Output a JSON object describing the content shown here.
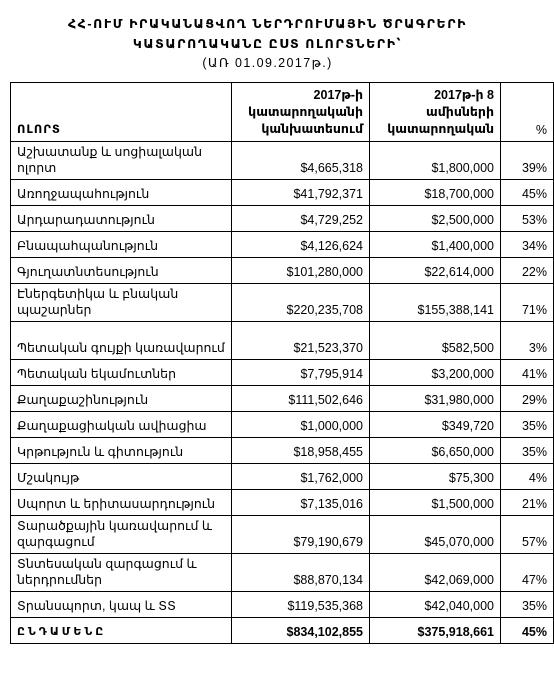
{
  "header": {
    "title_line1": "ՀՀ-ՈՒՄ ԻՐԱԿԱՆԱՑՎՈՂ ՆԵՐԴՐՈՒՄԱՅԻՆ ԾՐԱԳՐԵՐԻ",
    "title_line2": "ԿԱՏԱՐՈՂԱԿԱՆԸ ԸՍՏ ՈԼՈՐՏՆԵՐԻ՝",
    "subtitle": "(ԱՌ 01.09.2017թ.)"
  },
  "table": {
    "columns": {
      "sector": "ՈԼՈՐՏ",
      "planned": "2017թ-ի կատարողականի կանխատեսում",
      "executed": "2017թ-ի 8 ամիսների կատարողական",
      "percent": "%"
    },
    "rows": [
      {
        "sector": "Աշխատանք և սոցիալական ոլորտ",
        "planned": "$4,665,318",
        "executed": "$1,800,000",
        "percent": "39%"
      },
      {
        "sector": "Առողջապահություն",
        "planned": "$41,792,371",
        "executed": "$18,700,000",
        "percent": "45%"
      },
      {
        "sector": "Արդարադատություն",
        "planned": "$4,729,252",
        "executed": "$2,500,000",
        "percent": "53%"
      },
      {
        "sector": "Բնապահպանություն",
        "planned": "$4,126,624",
        "executed": "$1,400,000",
        "percent": "34%"
      },
      {
        "sector": "Գյուղատնտեսություն",
        "planned": "$101,280,000",
        "executed": "$22,614,000",
        "percent": "22%"
      },
      {
        "sector": "Էներգետիկա և բնական պաշարներ",
        "planned": "$220,235,708",
        "executed": "$155,388,141",
        "percent": "71%"
      },
      {
        "sector": "Պետական գույքի կառավարում",
        "planned": "$21,523,370",
        "executed": "$582,500",
        "percent": "3%"
      },
      {
        "sector": "Պետական եկամուտներ",
        "planned": "$7,795,914",
        "executed": "$3,200,000",
        "percent": "41%"
      },
      {
        "sector": "Քաղաքաշինություն",
        "planned": "$111,502,646",
        "executed": "$31,980,000",
        "percent": "29%"
      },
      {
        "sector": "Քաղաքացիական ավիացիա",
        "planned": "$1,000,000",
        "executed": "$349,720",
        "percent": "35%"
      },
      {
        "sector": "Կրթություն և գիտություն",
        "planned": "$18,958,455",
        "executed": "$6,650,000",
        "percent": "35%"
      },
      {
        "sector": "Մշակույթ",
        "planned": "$1,762,000",
        "executed": "$75,300",
        "percent": "4%"
      },
      {
        "sector": "Սպորտ և երիտասարդություն",
        "planned": "$7,135,016",
        "executed": "$1,500,000",
        "percent": "21%"
      },
      {
        "sector": "Տարածքային կառավարում և զարգացում",
        "planned": "$79,190,679",
        "executed": "$45,070,000",
        "percent": "57%"
      },
      {
        "sector": "Տնտեսական զարգացում և ներդրումներ",
        "planned": "$88,870,134",
        "executed": "$42,069,000",
        "percent": "47%"
      },
      {
        "sector": "Տրանսպորտ, կապ և ՏՏ",
        "planned": "$119,535,368",
        "executed": "$42,040,000",
        "percent": "35%"
      }
    ],
    "total": {
      "sector": "ԸՆԴԱՄԵՆԸ",
      "planned": "$834,102,855",
      "executed": "$375,918,661",
      "percent": "45%"
    }
  }
}
